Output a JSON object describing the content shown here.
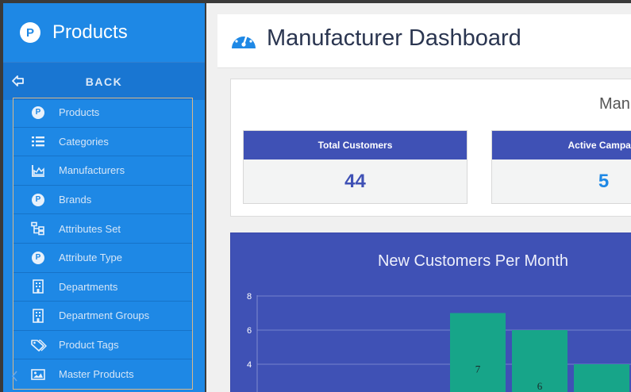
{
  "sidebar": {
    "logo": "P",
    "title": "Products",
    "back_label": "BACK",
    "items": [
      {
        "label": "Products",
        "icon": "p-circle-icon"
      },
      {
        "label": "Categories",
        "icon": "list-icon"
      },
      {
        "label": "Manufacturers",
        "icon": "area-chart-icon"
      },
      {
        "label": "Brands",
        "icon": "p-circle-icon"
      },
      {
        "label": "Attributes Set",
        "icon": "sitemap-icon"
      },
      {
        "label": "Attribute Type",
        "icon": "p-circle-icon"
      },
      {
        "label": "Departments",
        "icon": "building-icon"
      },
      {
        "label": "Department Groups",
        "icon": "building-icon"
      },
      {
        "label": "Product Tags",
        "icon": "tags-icon"
      },
      {
        "label": "Master Products",
        "icon": "image-icon"
      }
    ]
  },
  "main": {
    "title": "Manufacturer Dashboard",
    "stats_heading": "Man",
    "stats": [
      {
        "label": "Total Customers",
        "value": "44",
        "color": "#3f51b5"
      },
      {
        "label": "Active Campaig",
        "value": "5",
        "color": "#1e88e5"
      }
    ]
  },
  "colors": {
    "sidebar_bg": "#1e88e5",
    "header_blue": "#3f51b5",
    "bar_teal": "#17a589"
  },
  "chart_data": {
    "type": "bar",
    "title": "New Customers Per Month",
    "y_ticks": [
      "8",
      "6",
      "4"
    ],
    "ylim": [
      0,
      8
    ],
    "values": [
      7,
      6,
      4
    ],
    "labels": [
      "7",
      "6",
      ""
    ]
  }
}
